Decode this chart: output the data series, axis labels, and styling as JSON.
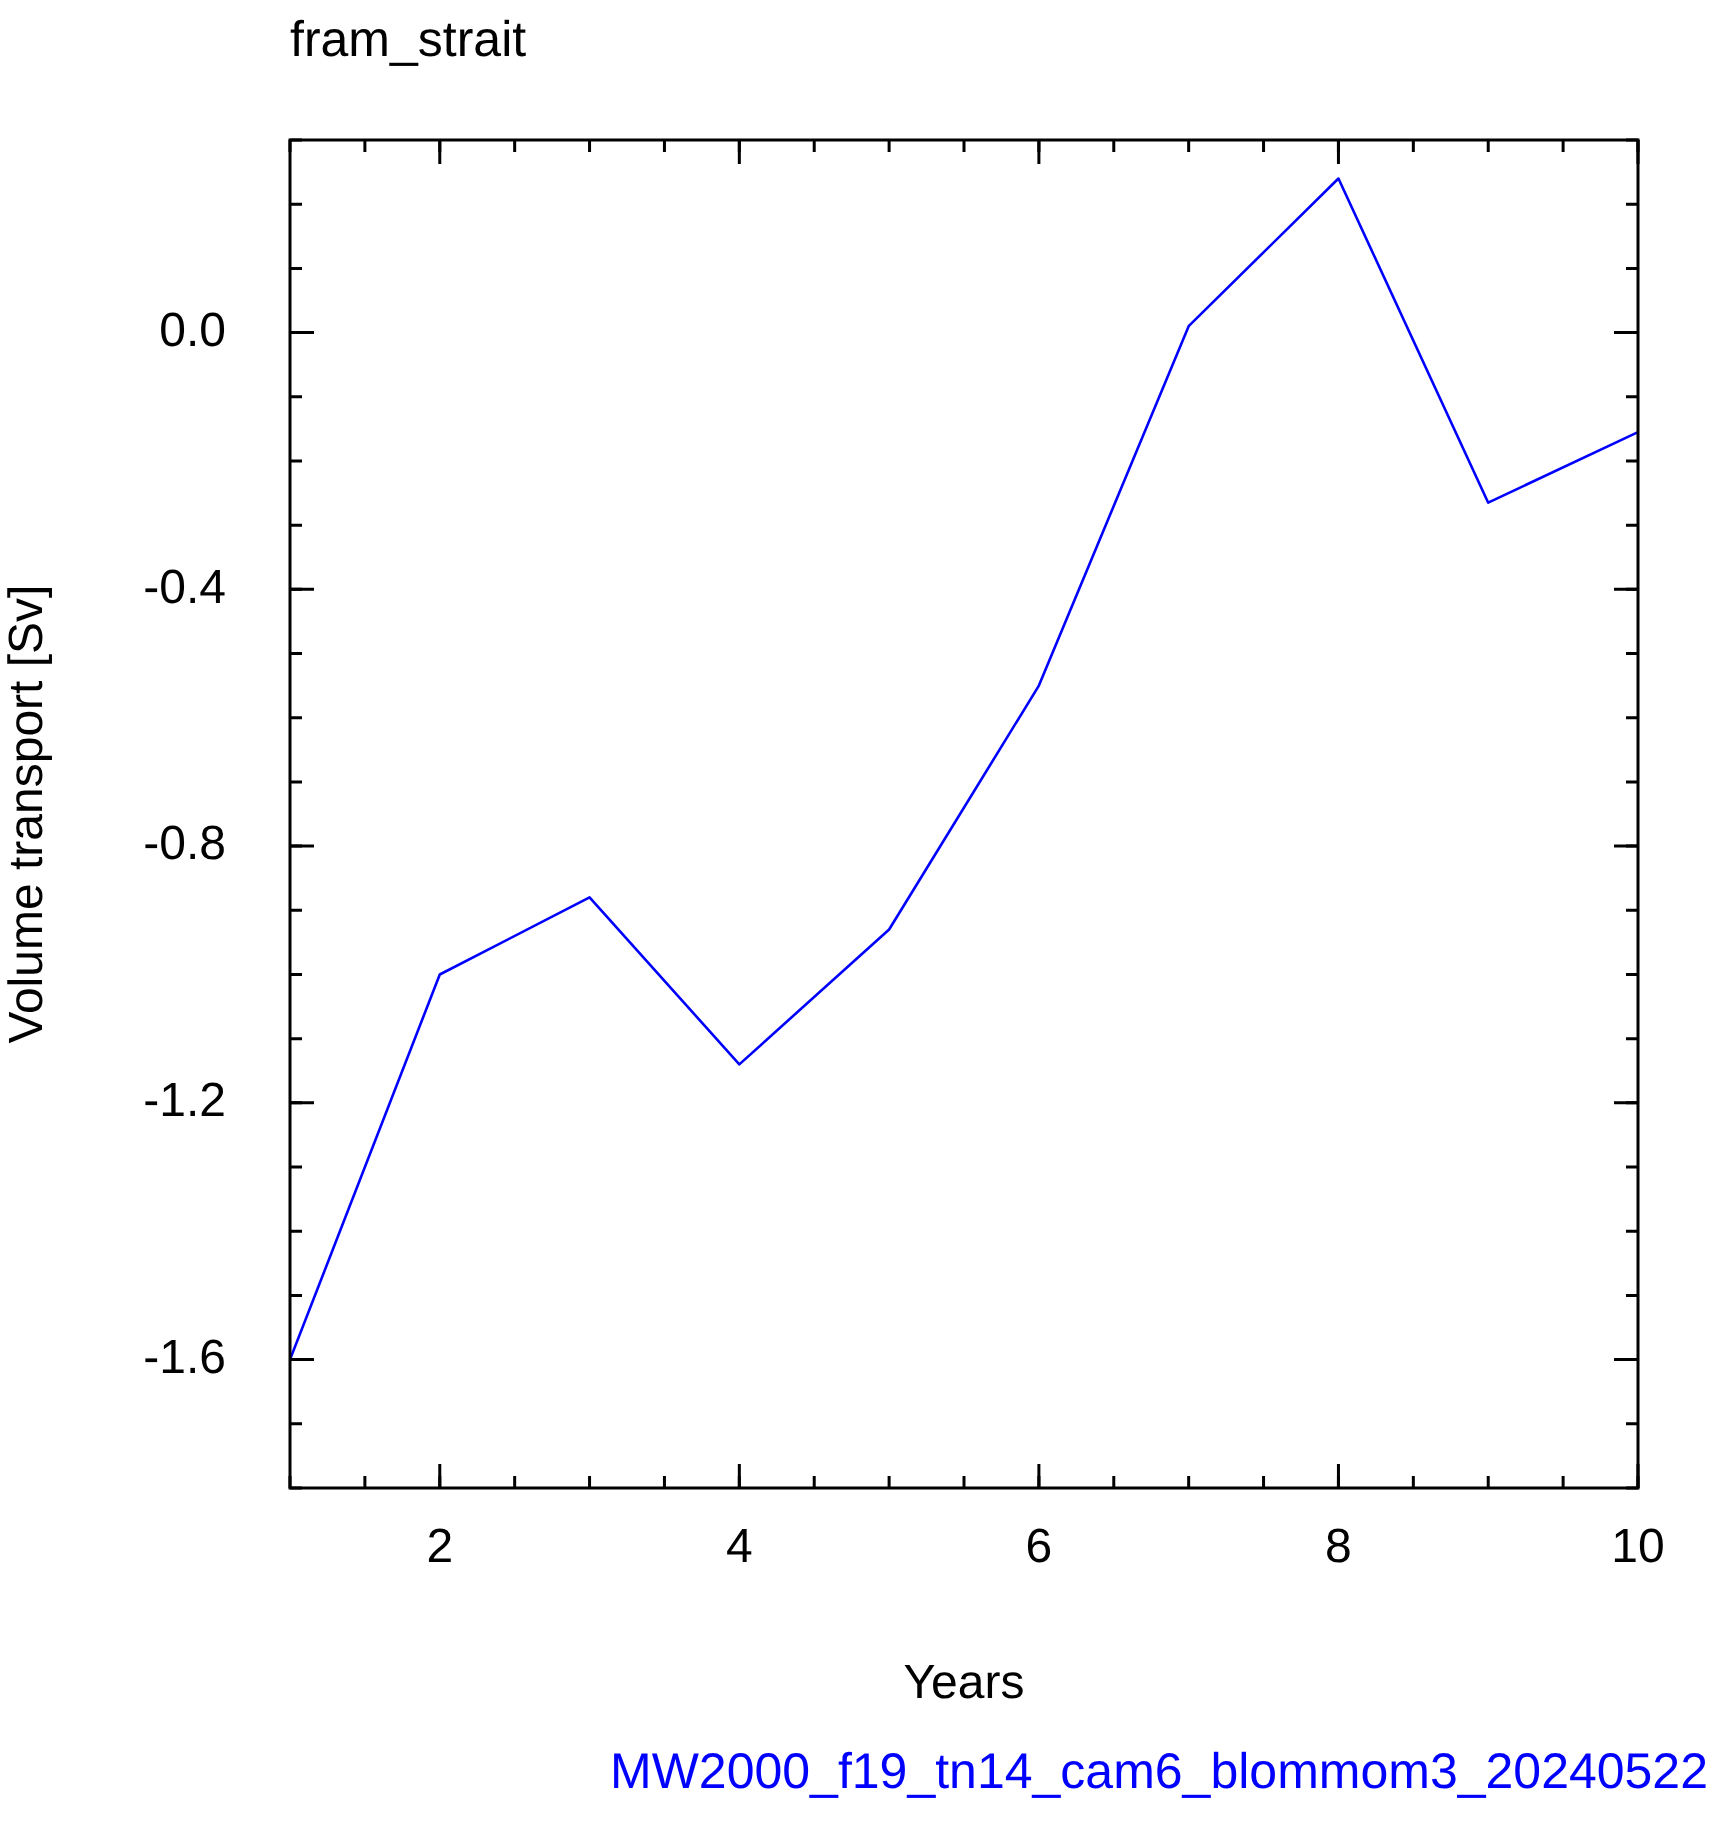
{
  "chart_data": {
    "type": "line",
    "title": "fram_strait",
    "xlabel": "Years",
    "ylabel": "Volume transport [Sv]",
    "x": [
      1,
      2,
      3,
      4,
      5,
      6,
      7,
      8,
      9,
      10
    ],
    "series": [
      {
        "color": "#0000ff",
        "values": [
          -1.6,
          -1.0,
          -0.88,
          -1.14,
          -0.93,
          -0.55,
          0.01,
          0.24,
          -0.265,
          -0.155
        ]
      }
    ],
    "xlim": [
      1,
      10
    ],
    "xticks": [
      2,
      4,
      6,
      8,
      10
    ],
    "ylim": [
      -1.8,
      0.3
    ],
    "yticks": [
      {
        "value": -1.6,
        "label": "-1.6"
      },
      {
        "value": -1.2,
        "label": "-1.2"
      },
      {
        "value": -0.8,
        "label": "-0.8"
      },
      {
        "value": -0.4,
        "label": "-0.4"
      },
      {
        "value": 0,
        "label": "0.0"
      }
    ],
    "grid": false,
    "legend": false,
    "marker": "none",
    "line_style": "solid",
    "annotations": [
      "MW2000_f19_tn14_cam6_blommom3_20240522"
    ]
  }
}
